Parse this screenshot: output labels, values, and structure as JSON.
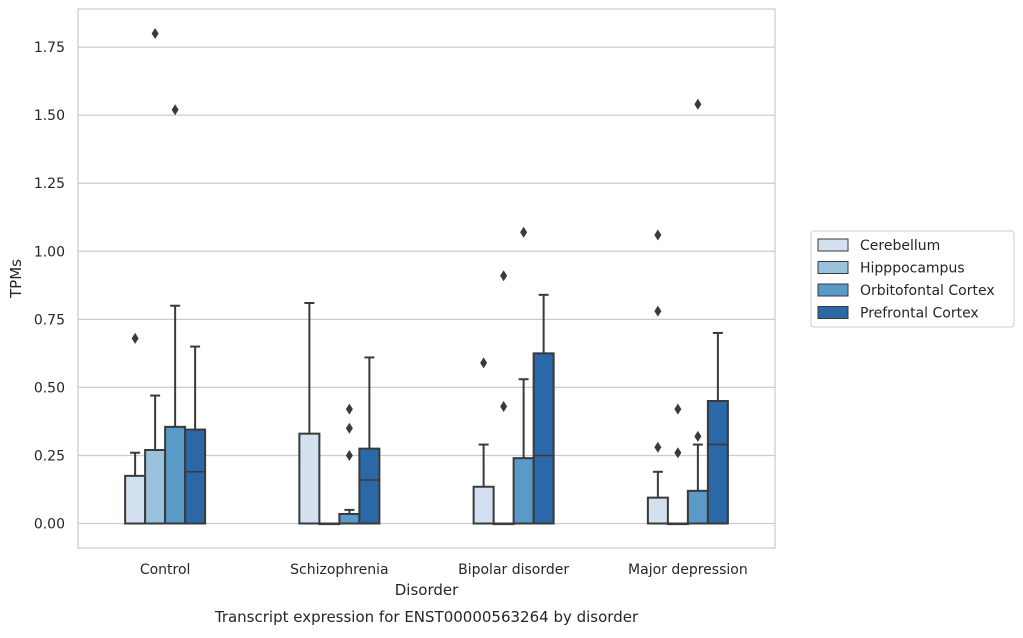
{
  "chart_data": {
    "type": "box",
    "xlabel": "Disorder",
    "ylabel": "TPMs",
    "caption": "Transcript expression for ENST00000563264 by disorder",
    "ylim": [
      -0.09,
      1.89
    ],
    "yticks": [
      0.0,
      0.25,
      0.5,
      0.75,
      1.0,
      1.25,
      1.5,
      1.75
    ],
    "ytick_labels": [
      "0.00",
      "0.25",
      "0.50",
      "0.75",
      "1.00",
      "1.25",
      "1.50",
      "1.75"
    ],
    "grid": "horizontal",
    "legend_position": "right",
    "categories": [
      "Control",
      "Schizophrenia",
      "Bipolar disorder",
      "Major depression"
    ],
    "series": [
      {
        "name": "Cerebellum",
        "color": "#d3e0ef",
        "boxes": [
          {
            "q1": 0.0,
            "median": 0.0,
            "q3": 0.175,
            "whisker_low": 0.0,
            "whisker_high": 0.26,
            "outliers": [
              0.68
            ]
          },
          {
            "q1": 0.0,
            "median": 0.0,
            "q3": 0.33,
            "whisker_low": 0.0,
            "whisker_high": 0.81,
            "outliers": []
          },
          {
            "q1": 0.0,
            "median": 0.0,
            "q3": 0.135,
            "whisker_low": 0.0,
            "whisker_high": 0.29,
            "outliers": [
              0.59
            ]
          },
          {
            "q1": 0.0,
            "median": 0.0,
            "q3": 0.095,
            "whisker_low": 0.0,
            "whisker_high": 0.19,
            "outliers": [
              0.28,
              0.78,
              1.06
            ]
          }
        ]
      },
      {
        "name": "Hipppocampus",
        "color": "#9ac2dc",
        "boxes": [
          {
            "q1": 0.0,
            "median": 0.0,
            "q3": 0.27,
            "whisker_low": 0.0,
            "whisker_high": 0.47,
            "outliers": [
              1.8
            ]
          },
          {
            "q1": 0.0,
            "median": 0.0,
            "q3": 0.0,
            "whisker_low": 0.0,
            "whisker_high": 0.0,
            "outliers": []
          },
          {
            "q1": 0.0,
            "median": 0.0,
            "q3": 0.0,
            "whisker_low": 0.0,
            "whisker_high": 0.0,
            "outliers": [
              0.43,
              0.91
            ]
          },
          {
            "q1": 0.0,
            "median": 0.0,
            "q3": 0.0,
            "whisker_low": 0.0,
            "whisker_high": 0.0,
            "outliers": [
              0.26,
              0.42
            ]
          }
        ]
      },
      {
        "name": "Orbitofontal Cortex",
        "color": "#5a9ac8",
        "boxes": [
          {
            "q1": 0.0,
            "median": 0.0,
            "q3": 0.355,
            "whisker_low": 0.0,
            "whisker_high": 0.8,
            "outliers": [
              1.52
            ]
          },
          {
            "q1": 0.0,
            "median": 0.0,
            "q3": 0.035,
            "whisker_low": 0.0,
            "whisker_high": 0.05,
            "outliers": [
              0.25,
              0.35,
              0.42
            ]
          },
          {
            "q1": 0.0,
            "median": 0.0,
            "q3": 0.24,
            "whisker_low": 0.0,
            "whisker_high": 0.53,
            "outliers": [
              1.07
            ]
          },
          {
            "q1": 0.0,
            "median": 0.0,
            "q3": 0.12,
            "whisker_low": 0.0,
            "whisker_high": 0.29,
            "outliers": [
              0.32,
              1.54
            ]
          }
        ]
      },
      {
        "name": "Prefrontal Cortex",
        "color": "#2a68a8",
        "boxes": [
          {
            "q1": 0.0,
            "median": 0.19,
            "q3": 0.345,
            "whisker_low": 0.0,
            "whisker_high": 0.65,
            "outliers": []
          },
          {
            "q1": 0.0,
            "median": 0.16,
            "q3": 0.275,
            "whisker_low": 0.0,
            "whisker_high": 0.61,
            "outliers": []
          },
          {
            "q1": 0.0,
            "median": 0.25,
            "q3": 0.625,
            "whisker_low": 0.0,
            "whisker_high": 0.84,
            "outliers": []
          },
          {
            "q1": 0.0,
            "median": 0.29,
            "q3": 0.45,
            "whisker_low": 0.0,
            "whisker_high": 0.7,
            "outliers": []
          }
        ]
      }
    ]
  }
}
